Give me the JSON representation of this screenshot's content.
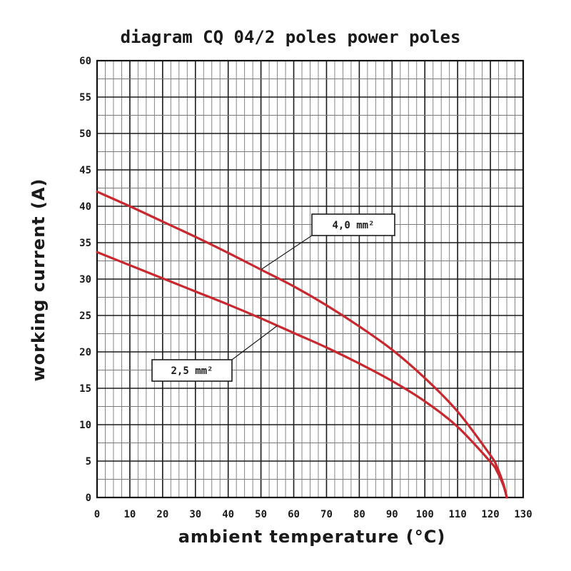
{
  "chart_data": {
    "type": "line",
    "title": "diagram CQ 04/2 poles power poles",
    "xlabel": "ambient temperature (°C)",
    "ylabel": "working current (A)",
    "xlim": [
      0,
      130
    ],
    "ylim": [
      0,
      60
    ],
    "x_ticks": [
      "0",
      "10",
      "20",
      "30",
      "40",
      "50",
      "60",
      "70",
      "80",
      "90",
      "100",
      "110",
      "120",
      "130"
    ],
    "y_ticks": [
      "0",
      "5",
      "10",
      "15",
      "20",
      "25",
      "30",
      "35",
      "40",
      "45",
      "50",
      "55",
      "60"
    ],
    "grid": true,
    "series": [
      {
        "name": "4,0 mm²",
        "color": "#c8282e",
        "points": [
          [
            0,
            42
          ],
          [
            10,
            40
          ],
          [
            20,
            37.9
          ],
          [
            30,
            35.8
          ],
          [
            40,
            33.6
          ],
          [
            50,
            31.3
          ],
          [
            60,
            29
          ],
          [
            70,
            26.4
          ],
          [
            80,
            23.5
          ],
          [
            90,
            20.3
          ],
          [
            100,
            16.4
          ],
          [
            110,
            11.8
          ],
          [
            120,
            5.8
          ],
          [
            122,
            4.2
          ],
          [
            124,
            1.8
          ],
          [
            125,
            0
          ]
        ]
      },
      {
        "name": "2,5 mm²",
        "color": "#c8282e",
        "points": [
          [
            0,
            33.7
          ],
          [
            10,
            31.9
          ],
          [
            20,
            30.1
          ],
          [
            30,
            28.3
          ],
          [
            40,
            26.5
          ],
          [
            50,
            24.6
          ],
          [
            60,
            22.6
          ],
          [
            70,
            20.6
          ],
          [
            80,
            18.4
          ],
          [
            90,
            16
          ],
          [
            100,
            13.2
          ],
          [
            110,
            9.7
          ],
          [
            120,
            4.9
          ],
          [
            122,
            3.6
          ],
          [
            124,
            1.6
          ],
          [
            125,
            0
          ]
        ]
      }
    ]
  }
}
